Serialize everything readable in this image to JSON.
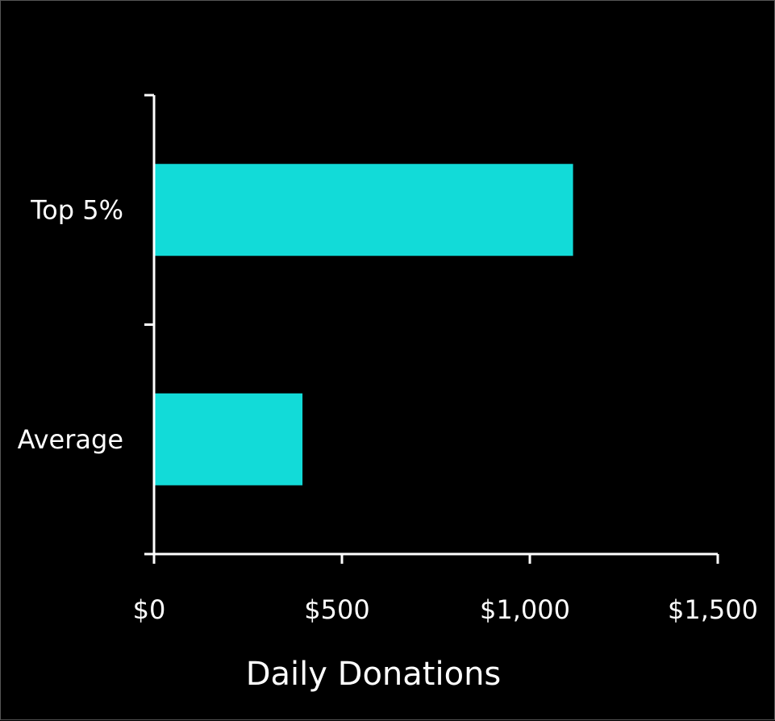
{
  "chart_data": {
    "type": "bar",
    "orientation": "horizontal",
    "title": "",
    "xlabel": "Daily Donations",
    "ylabel": "",
    "categories": [
      "Top 5%",
      "Average"
    ],
    "values": [
      1115,
      395
    ],
    "xlim": [
      0,
      1500
    ],
    "xticks": [
      0,
      500,
      1000,
      1500
    ],
    "xtick_labels": [
      "$0",
      "$500",
      "$1,000",
      "$1,500"
    ],
    "grid": false,
    "legend": "none",
    "colors": {
      "bar": "#12DBD8",
      "background": "#000000",
      "axis": "#FFFFFF",
      "text": "#FFFFFF"
    }
  }
}
